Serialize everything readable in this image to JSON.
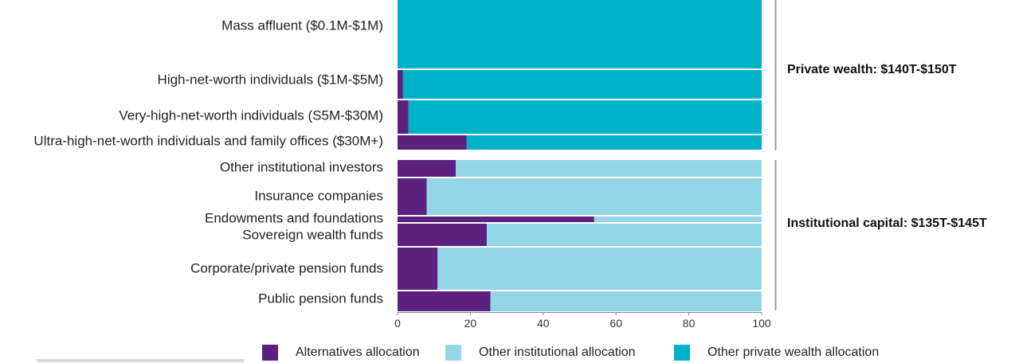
{
  "chart_data": {
    "type": "bar",
    "orientation": "horizontal",
    "stacked": true,
    "xlim": [
      0,
      100
    ],
    "x_ticks": [
      "0",
      "20",
      "40",
      "60",
      "80",
      "100"
    ],
    "categories": [
      "Mass affluent ($0.1M-$1M)",
      "High-net-worth individuals ($1M-$5M)",
      "Very-high-net-worth individuals (S5M-$30M)",
      "Ultra-high-net-worth individuals and family offices ($30M+)",
      "Other institutional investors",
      "Insurance companies",
      "Endowments and foundations",
      "Sovereign wealth funds",
      "Corporate/private pension funds",
      "Public pension funds"
    ],
    "series": [
      {
        "name": "Alternatives allocation",
        "color": "#5b2080",
        "values": [
          0,
          1.5,
          3,
          19,
          16,
          8,
          54,
          24.5,
          11,
          25.5
        ]
      },
      {
        "name": "Other institutional allocation",
        "color": "#94d5e6",
        "values": [
          0,
          0,
          0,
          0,
          84,
          92,
          46,
          75.5,
          89,
          74.5
        ]
      },
      {
        "name": "Other private wealth allocation",
        "color": "#00b2c9",
        "values": [
          100,
          98.5,
          97,
          81,
          0,
          0,
          0,
          0,
          0,
          0
        ]
      }
    ],
    "groups": [
      {
        "label": "Private wealth: $140T-$150T"
      },
      {
        "label": "Institutional capital: $135T-$145T"
      }
    ],
    "legend_position": "bottom",
    "grid": false
  }
}
